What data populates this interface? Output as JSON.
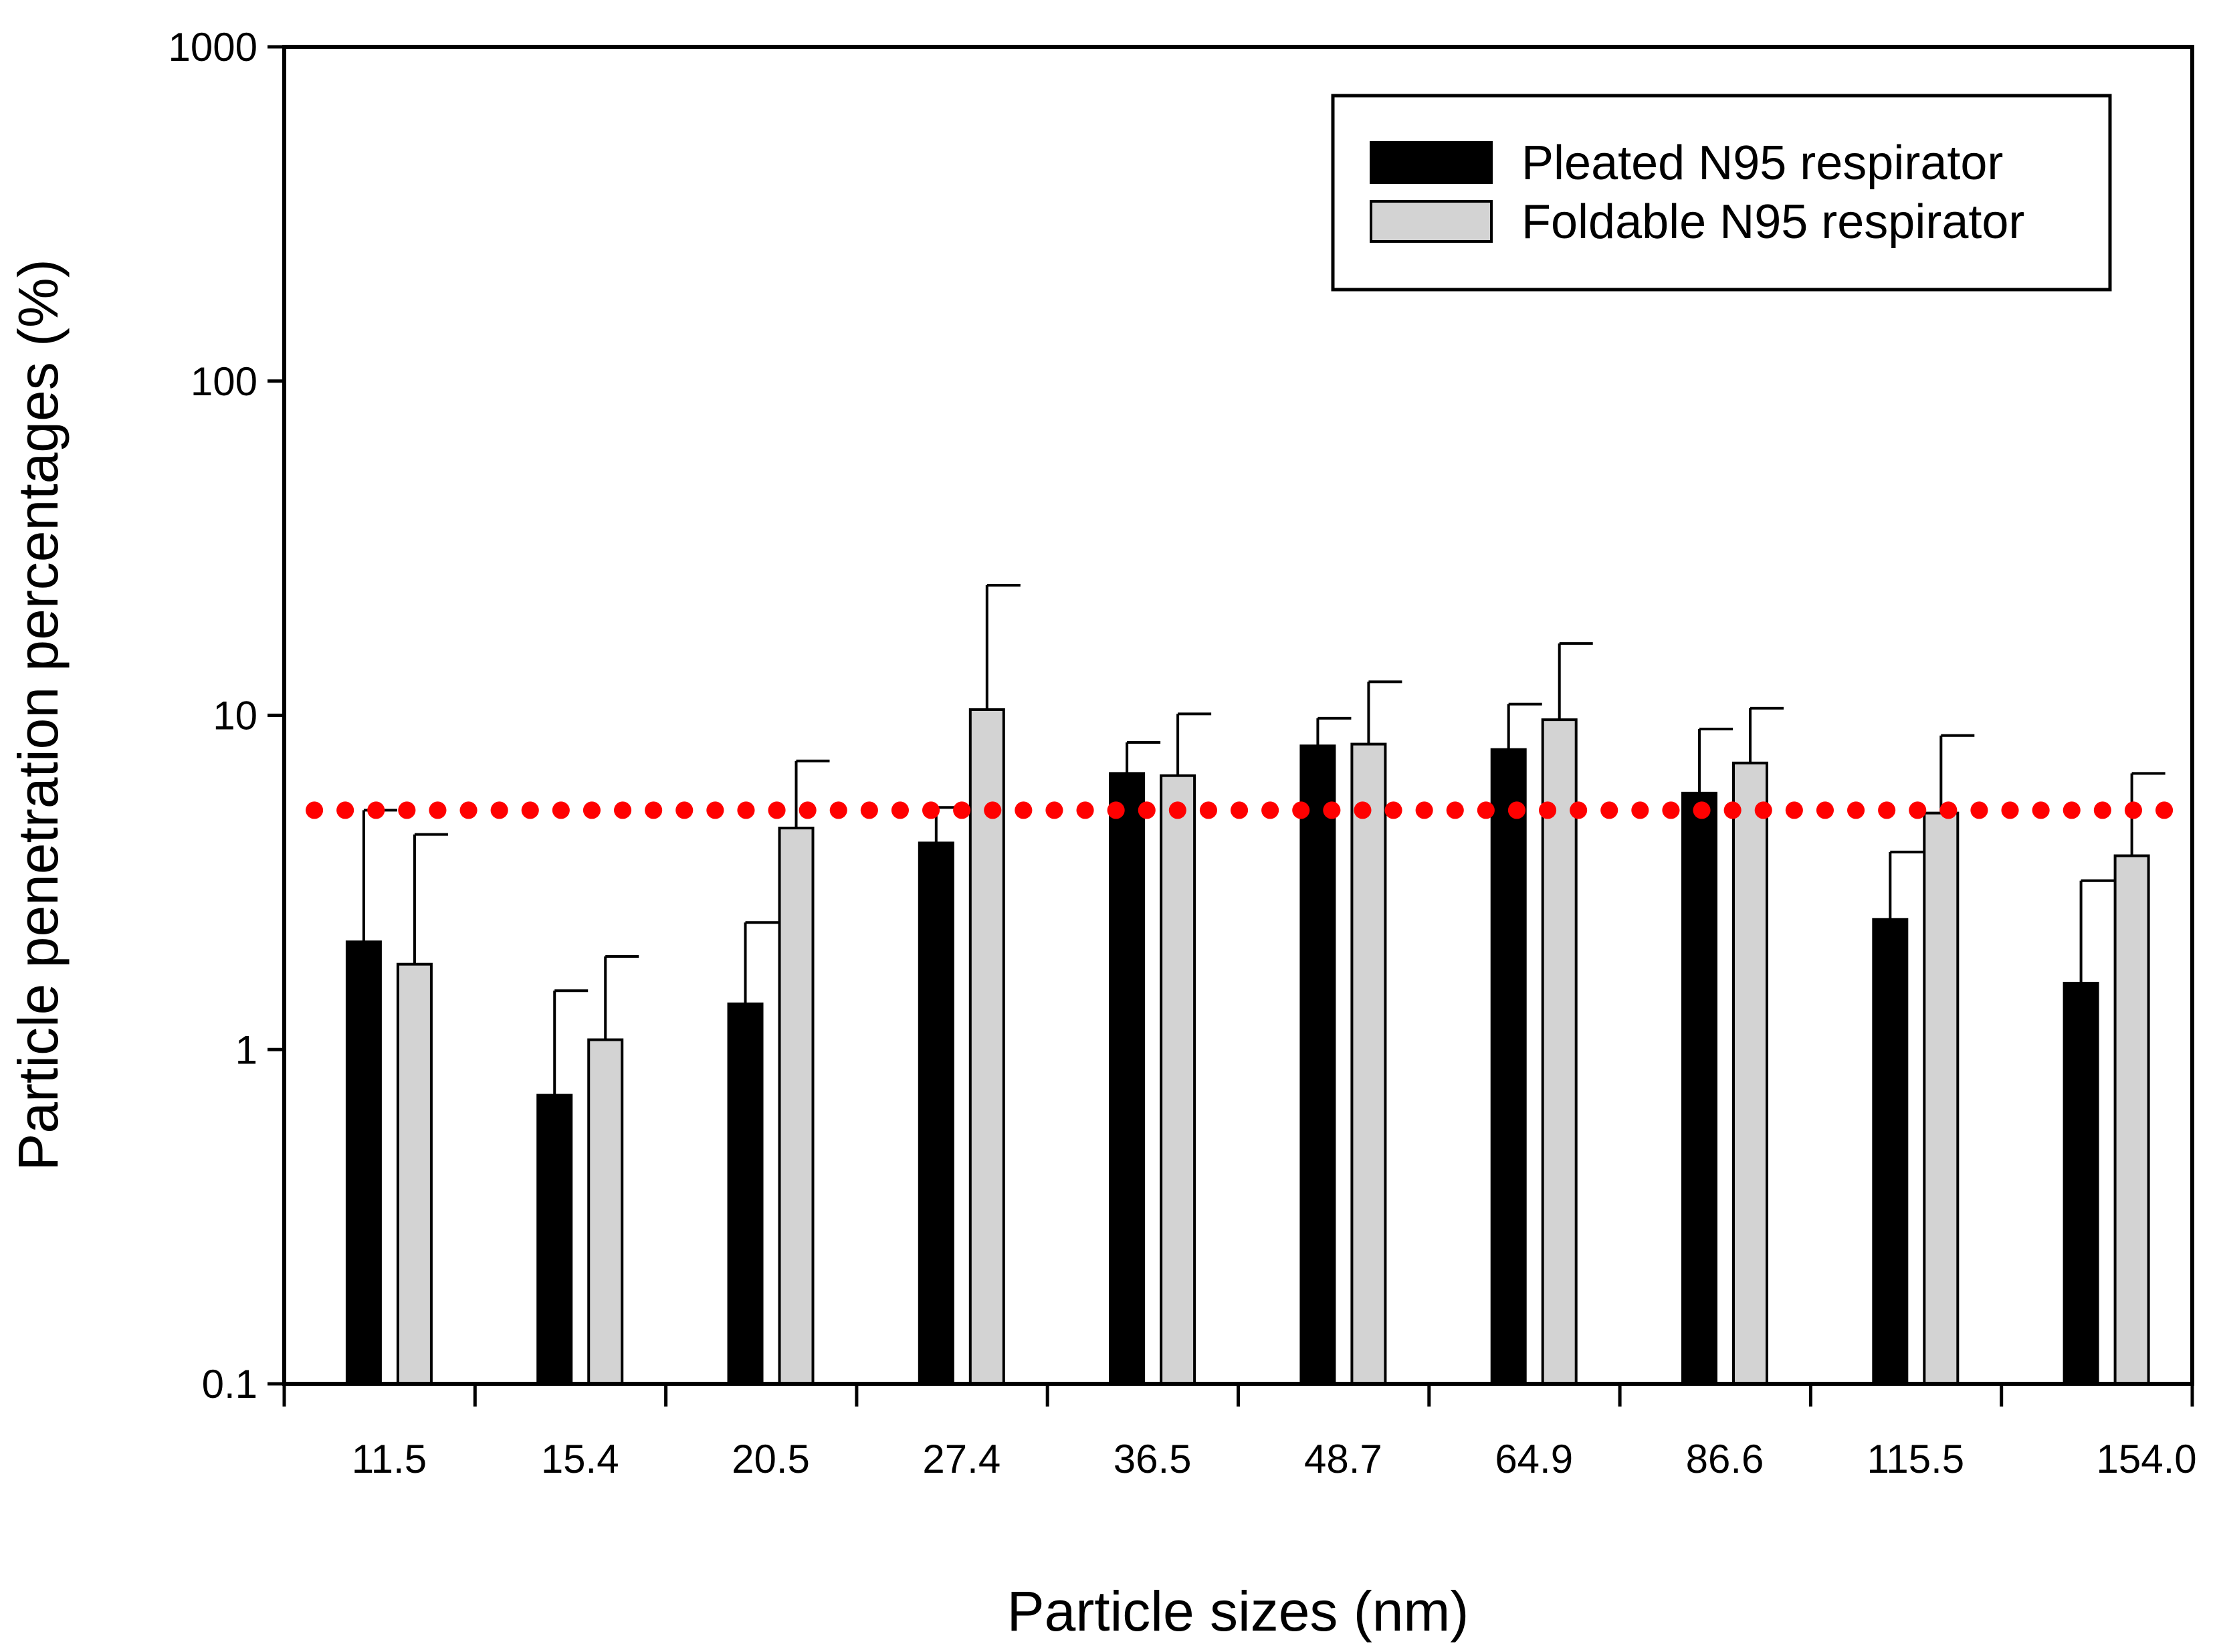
{
  "colors": {
    "pleated": "#000000",
    "foldable": "#d3d3d3",
    "bar_outline": "#000000",
    "threshold": "#ff0000",
    "axis": "#000000",
    "background": "#ffffff"
  },
  "chart_data": {
    "type": "bar",
    "title": "",
    "xlabel": "Particle sizes (nm)",
    "ylabel": "Particle penetration percentages (%)",
    "yscale": "log",
    "ylim": [
      0.1,
      1000
    ],
    "y_ticks": [
      {
        "value": 0.1,
        "label": "0.1"
      },
      {
        "value": 1,
        "label": "1"
      },
      {
        "value": 10,
        "label": "10"
      },
      {
        "value": 100,
        "label": "100"
      },
      {
        "value": 1000,
        "label": "1000"
      }
    ],
    "categories": [
      "11.5",
      "15.4",
      "20.5",
      "27.4",
      "36.5",
      "48.7",
      "64.9",
      "86.6",
      "115.5",
      "154.0"
    ],
    "series": [
      {
        "name": "Pleated N95 respirator",
        "color_key": "pleated",
        "values": [
          2.1,
          0.73,
          1.37,
          4.15,
          6.7,
          8.1,
          7.9,
          5.85,
          2.45,
          1.58
        ],
        "error_upper": [
          5.2,
          1.5,
          2.4,
          5.3,
          8.3,
          9.8,
          10.8,
          9.1,
          3.9,
          3.2
        ]
      },
      {
        "name": "Foldable N95 respirator",
        "color_key": "foldable",
        "values": [
          1.8,
          1.07,
          4.6,
          10.4,
          6.6,
          8.2,
          9.7,
          7.2,
          5.1,
          3.8
        ],
        "error_upper": [
          4.4,
          1.9,
          7.3,
          24.5,
          10.1,
          12.6,
          16.4,
          10.5,
          8.7,
          6.7
        ]
      }
    ],
    "reference_line": {
      "value": 5.2,
      "style": "dotted",
      "color_key": "threshold"
    },
    "legend": {
      "position": "top-right",
      "frame": true
    }
  }
}
